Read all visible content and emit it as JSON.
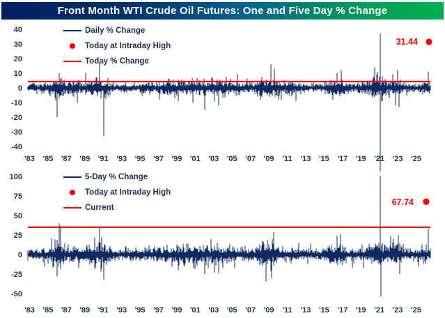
{
  "title": "Front Month WTI Crude Oil Futures: One and Five Day % Change",
  "colors": {
    "bars_navy": "#0e2a60",
    "line_red": "#fe0000",
    "tick_text": "#1c2e52",
    "title_gradient_left": "#002060",
    "title_gradient_right": "#00b050"
  },
  "chart_data": [
    {
      "type": "bar",
      "name": "daily-percent-change",
      "legend": [
        {
          "label": "Daily % Change",
          "swatch": "line",
          "color": "navy"
        },
        {
          "label": "Today at Intraday High",
          "swatch": "dot",
          "color": "red"
        },
        {
          "label": "Today % Change",
          "swatch": "line",
          "color": "red"
        }
      ],
      "ylim": [
        -40,
        40
      ],
      "yticks": [
        40,
        30,
        20,
        10,
        0,
        -10,
        -20,
        -30,
        -40
      ],
      "xticks": [
        "'83",
        "'85",
        "'87",
        "'89",
        "'91",
        "'93",
        "'95",
        "'97",
        "'99",
        "'01",
        "'03",
        "'05",
        "'07",
        "'09",
        "'11",
        "'13",
        "'15",
        "'17",
        "'19",
        "'21",
        "'23",
        "'25"
      ],
      "x_range": [
        1983,
        2025.6
      ],
      "red_line_value": 4.3,
      "intraday_high": {
        "label": "31.44",
        "value": 31.44
      },
      "seed": 7,
      "volatility_profile": {
        "start_year": 1983,
        "sigma": [
          1.2,
          1.2,
          1.6,
          3.5,
          2.2,
          2.2,
          1.8,
          3.4,
          3.0,
          1.4,
          1.4,
          1.6,
          1.3,
          1.8,
          1.8,
          2.4,
          2.2,
          2.4,
          2.6,
          2.0,
          2.6,
          2.2,
          2.0,
          1.7,
          1.7,
          3.4,
          3.0,
          1.8,
          2.0,
          1.6,
          1.2,
          1.4,
          2.6,
          2.8,
          1.4,
          1.8,
          2.0,
          4.2,
          2.0,
          2.8,
          1.8,
          1.4,
          1.8
        ]
      },
      "events": [
        {
          "year": 1986.1,
          "value": -20
        },
        {
          "year": 1986.35,
          "value": 10
        },
        {
          "year": 1988.2,
          "value": -10
        },
        {
          "year": 1990.6,
          "value": 17
        },
        {
          "year": 1991.05,
          "value": -33
        },
        {
          "year": 1996.9,
          "value": -8
        },
        {
          "year": 1998.9,
          "value": -9
        },
        {
          "year": 2001.7,
          "value": -15
        },
        {
          "year": 2003.2,
          "value": -12
        },
        {
          "year": 2008.75,
          "value": 16
        },
        {
          "year": 2009.1,
          "value": 13
        },
        {
          "year": 2011.35,
          "value": -9
        },
        {
          "year": 2015.7,
          "value": 10
        },
        {
          "year": 2016.15,
          "value": 12
        },
        {
          "year": 2019.7,
          "value": 14
        },
        {
          "year": 2020.3,
          "value": -57
        },
        {
          "year": 2020.33,
          "value": 37
        },
        {
          "year": 2021.9,
          "value": -12
        },
        {
          "year": 2022.17,
          "value": 12
        },
        {
          "year": 2022.3,
          "value": -13
        },
        {
          "year": 2025.4,
          "value": 11
        }
      ]
    },
    {
      "type": "bar",
      "name": "five-day-percent-change",
      "legend": [
        {
          "label": "5-Day % Change",
          "swatch": "line",
          "color": "navy"
        },
        {
          "label": "Today at Intraday High",
          "swatch": "dot",
          "color": "red"
        },
        {
          "label": "Current",
          "swatch": "line",
          "color": "red"
        }
      ],
      "ylim": [
        -50,
        100
      ],
      "yticks": [
        100,
        75,
        50,
        25,
        0,
        -25,
        -50
      ],
      "xticks": [
        "'83",
        "'85",
        "'87",
        "'89",
        "'91",
        "'93",
        "'95",
        "'97",
        "'99",
        "'01",
        "'03",
        "'05",
        "'07",
        "'09",
        "'11",
        "'13",
        "'15",
        "'17",
        "'19",
        "'21",
        "'23",
        "'25"
      ],
      "x_range": [
        1983,
        2025.6
      ],
      "red_line_value": 35,
      "intraday_high": {
        "label": "67.74",
        "value": 67.74
      },
      "seed": 13,
      "volatility_profile": {
        "start_year": 1983,
        "sigma": [
          2.5,
          2.5,
          3.5,
          8,
          5,
          5,
          4,
          8,
          7,
          3,
          3,
          3.5,
          3,
          4,
          4,
          5.5,
          5,
          5.5,
          6,
          4.5,
          6,
          5,
          4.5,
          4,
          4,
          7.5,
          6.5,
          4,
          4.5,
          3.5,
          2.8,
          3.2,
          6,
          6.5,
          3.2,
          4,
          4.5,
          9,
          4.5,
          6.5,
          4,
          3.2,
          4.5
        ]
      },
      "events": [
        {
          "year": 1986.1,
          "value": -28
        },
        {
          "year": 1986.3,
          "value": 40
        },
        {
          "year": 1986.45,
          "value": 37
        },
        {
          "year": 1990.6,
          "value": 35
        },
        {
          "year": 1991.05,
          "value": -32
        },
        {
          "year": 1998.9,
          "value": -20
        },
        {
          "year": 2001.7,
          "value": -25
        },
        {
          "year": 2003.2,
          "value": -24
        },
        {
          "year": 2008.8,
          "value": -30
        },
        {
          "year": 2009.05,
          "value": 29
        },
        {
          "year": 2015.7,
          "value": 24
        },
        {
          "year": 2016.1,
          "value": 26
        },
        {
          "year": 2020.3,
          "value": 101
        },
        {
          "year": 2020.36,
          "value": -54
        },
        {
          "year": 2022.2,
          "value": 25
        },
        {
          "year": 2022.33,
          "value": -25
        },
        {
          "year": 2025.4,
          "value": 33
        }
      ]
    }
  ]
}
